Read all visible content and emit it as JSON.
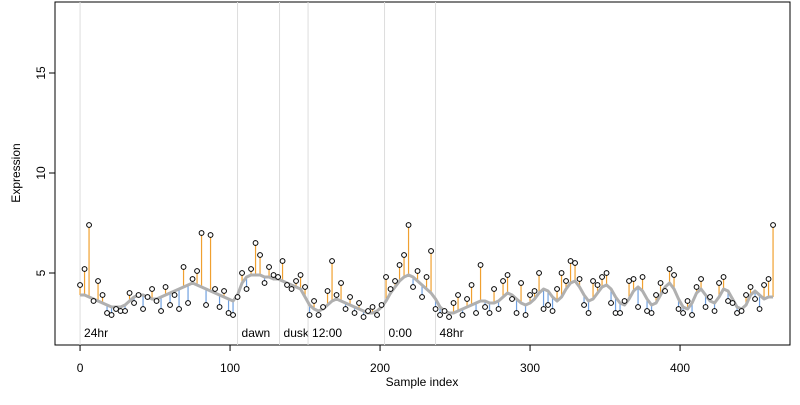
{
  "chart_data": {
    "type": "residual-scatter",
    "x_label": "Sample index",
    "y_label": "Expression",
    "xlim": [
      -16.7,
      473.3
    ],
    "ylim": [
      1.4,
      18.55
    ],
    "xticks": [
      0,
      100,
      200,
      300,
      400
    ],
    "yticks": [
      5,
      10,
      15
    ],
    "markers": [
      {
        "x": 0,
        "label": "24hr"
      },
      {
        "x": 105,
        "label": "dawn"
      },
      {
        "x": 133,
        "label": "dusk"
      },
      {
        "x": 152,
        "label": "12:00"
      },
      {
        "x": 203,
        "label": "0:00"
      },
      {
        "x": 237,
        "label": "48hr"
      }
    ],
    "marker_color": "#dddddd",
    "marker_label_color": "#aaaaaa",
    "residual_colors": {
      "above": "#f0a030",
      "below": "#6fa0e0"
    },
    "x": [
      0,
      3,
      6,
      9,
      12,
      15,
      18,
      21,
      24,
      27,
      30,
      33,
      36,
      39,
      42,
      45,
      48,
      51,
      54,
      57,
      60,
      63,
      66,
      69,
      72,
      75,
      78,
      81,
      84,
      87,
      90,
      93,
      96,
      99,
      102,
      105,
      108,
      111,
      114,
      117,
      120,
      123,
      126,
      129,
      132,
      135,
      138,
      141,
      144,
      147,
      150,
      153,
      156,
      159,
      162,
      165,
      168,
      171,
      174,
      177,
      180,
      183,
      186,
      189,
      192,
      195,
      198,
      201,
      204,
      207,
      210,
      213,
      216,
      219,
      222,
      225,
      228,
      231,
      234,
      237,
      240,
      243,
      246,
      249,
      252,
      255,
      258,
      261,
      264,
      267,
      270,
      273,
      276,
      279,
      282,
      285,
      288,
      291,
      294,
      297,
      300,
      303,
      306,
      309,
      312,
      315,
      318,
      321,
      324,
      327,
      330,
      333,
      336,
      339,
      342,
      345,
      348,
      351,
      354,
      357,
      360,
      363,
      366,
      369,
      372,
      375,
      378,
      381,
      384,
      387,
      390,
      393,
      396,
      399,
      402,
      405,
      408,
      411,
      414,
      417,
      420,
      423,
      426,
      429,
      432,
      435,
      438,
      441,
      444,
      447,
      450,
      453,
      456,
      459,
      462
    ],
    "series": [
      {
        "name": "observed",
        "color": "#000000",
        "values": [
          4.4,
          5.2,
          7.4,
          3.6,
          4.6,
          3.9,
          3.0,
          2.9,
          3.2,
          3.1,
          3.1,
          4.0,
          3.5,
          3.9,
          3.2,
          3.8,
          4.2,
          3.6,
          3.1,
          4.3,
          3.4,
          3.9,
          3.2,
          5.3,
          3.5,
          4.7,
          5.1,
          7.0,
          3.4,
          6.9,
          4.2,
          3.3,
          4.1,
          3.0,
          2.9,
          3.8,
          5.0,
          4.2,
          5.2,
          6.5,
          5.9,
          4.5,
          5.3,
          4.9,
          4.8,
          5.6,
          4.4,
          4.2,
          4.6,
          4.9,
          4.3,
          2.9,
          3.6,
          2.9,
          3.3,
          4.1,
          5.6,
          3.9,
          4.5,
          3.2,
          3.8,
          3.0,
          3.5,
          2.8,
          3.1,
          3.3,
          2.9,
          3.4,
          4.8,
          4.2,
          4.6,
          5.4,
          5.9,
          7.4,
          4.3,
          5.1,
          3.8,
          4.8,
          6.1,
          3.2,
          2.9,
          3.1,
          2.8,
          3.5,
          3.9,
          2.9,
          3.7,
          4.4,
          3.0,
          5.4,
          3.3,
          3.0,
          4.2,
          3.2,
          4.6,
          4.9,
          3.7,
          3.0,
          4.5,
          2.9,
          3.9,
          4.1,
          5.0,
          3.2,
          3.4,
          3.1,
          4.2,
          5.0,
          4.6,
          5.6,
          5.5,
          4.7,
          3.4,
          3.0,
          4.6,
          4.4,
          4.8,
          5.0,
          3.5,
          3.0,
          3.0,
          3.6,
          4.6,
          4.7,
          3.3,
          4.8,
          3.1,
          3.0,
          3.9,
          4.5,
          4.1,
          5.2,
          4.9,
          3.2,
          3.0,
          3.6,
          2.9,
          4.3,
          4.7,
          3.3,
          3.8,
          3.1,
          4.5,
          4.8,
          3.6,
          3.5,
          3.0,
          3.1,
          3.9,
          4.3,
          3.7,
          3.2,
          4.4,
          4.7,
          7.4
        ]
      },
      {
        "name": "fitted",
        "color": "#b0b0b0",
        "values": [
          3.9,
          3.9,
          3.8,
          3.7,
          3.6,
          3.5,
          3.4,
          3.3,
          3.3,
          3.3,
          3.4,
          3.6,
          3.8,
          3.9,
          3.9,
          3.8,
          3.7,
          3.7,
          3.8,
          3.9,
          4.0,
          4.1,
          4.2,
          4.3,
          4.4,
          4.5,
          4.4,
          4.3,
          4.2,
          4.1,
          4.0,
          3.9,
          3.8,
          3.7,
          3.6,
          3.9,
          4.5,
          4.8,
          4.9,
          4.9,
          4.9,
          4.8,
          4.8,
          4.7,
          4.7,
          4.6,
          4.5,
          4.4,
          4.3,
          4.2,
          3.8,
          3.4,
          3.2,
          3.1,
          3.2,
          3.4,
          3.6,
          3.7,
          3.6,
          3.5,
          3.4,
          3.3,
          3.2,
          3.1,
          3.0,
          3.0,
          3.1,
          3.3,
          3.6,
          4.0,
          4.3,
          4.6,
          4.8,
          4.9,
          4.8,
          4.6,
          4.4,
          4.2,
          4.0,
          3.7,
          3.3,
          3.1,
          3.0,
          3.0,
          3.1,
          3.2,
          3.3,
          3.4,
          3.5,
          3.6,
          3.6,
          3.5,
          3.5,
          3.6,
          3.8,
          4.0,
          3.9,
          3.7,
          3.5,
          3.4,
          3.5,
          3.7,
          4.0,
          4.2,
          4.1,
          3.8,
          3.6,
          3.8,
          4.2,
          4.5,
          4.6,
          4.3,
          3.9,
          3.6,
          3.7,
          4.0,
          4.3,
          4.4,
          4.2,
          3.8,
          3.5,
          3.4,
          3.7,
          4.1,
          4.3,
          4.1,
          3.7,
          3.4,
          3.5,
          3.9,
          4.3,
          4.5,
          4.2,
          3.7,
          3.3,
          3.2,
          3.5,
          4.0,
          4.2,
          3.9,
          3.6,
          3.5,
          3.8,
          4.2,
          4.1,
          3.7,
          3.3,
          3.2,
          3.4,
          3.9,
          4.1,
          3.9,
          3.7,
          3.8,
          3.8
        ]
      }
    ]
  }
}
